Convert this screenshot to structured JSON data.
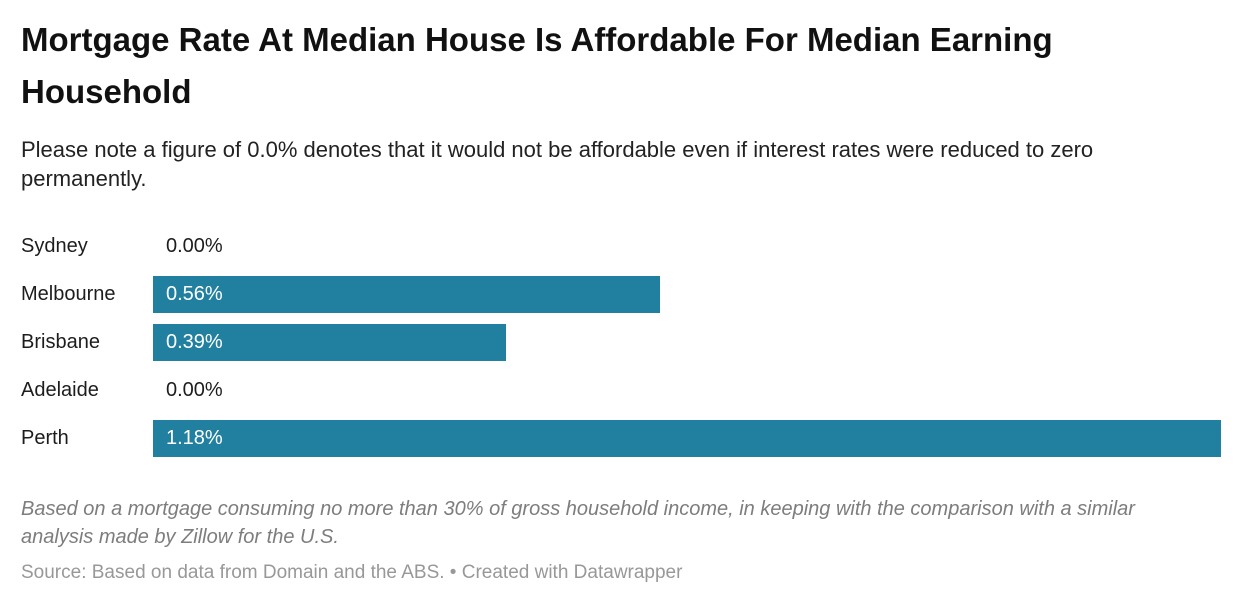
{
  "header": {
    "title": "Mortgage Rate At Median House Is Affordable For Median Earning Household",
    "subtitle": "Please note a figure of 0.0% denotes that it would not be affordable even if interest rates were reduced to zero permanently."
  },
  "chart_data": {
    "type": "bar",
    "orientation": "horizontal",
    "title": "Mortgage Rate At Median House Is Affordable For Median Earning Household",
    "categories": [
      "Sydney",
      "Melbourne",
      "Brisbane",
      "Adelaide",
      "Perth"
    ],
    "values": [
      0.0,
      0.56,
      0.39,
      0.0,
      1.18
    ],
    "value_labels": [
      "0.00%",
      "0.56%",
      "0.39%",
      "0.00%",
      "1.18%"
    ],
    "xlabel": "",
    "ylabel": "",
    "xlim": [
      0,
      1.18
    ],
    "grid": false,
    "legend": "none",
    "bar_color": "#21809f",
    "zero_label_color": "#1d1d1d",
    "bar_label_color": "#ffffff"
  },
  "footer": {
    "footnote": "Based on a mortgage consuming no more than 30% of gross household income, in keeping with the comparison with a similar analysis made by Zillow for the U.S.",
    "source": "Source: Based on data from Domain and the ABS. • Created with Datawrapper"
  }
}
